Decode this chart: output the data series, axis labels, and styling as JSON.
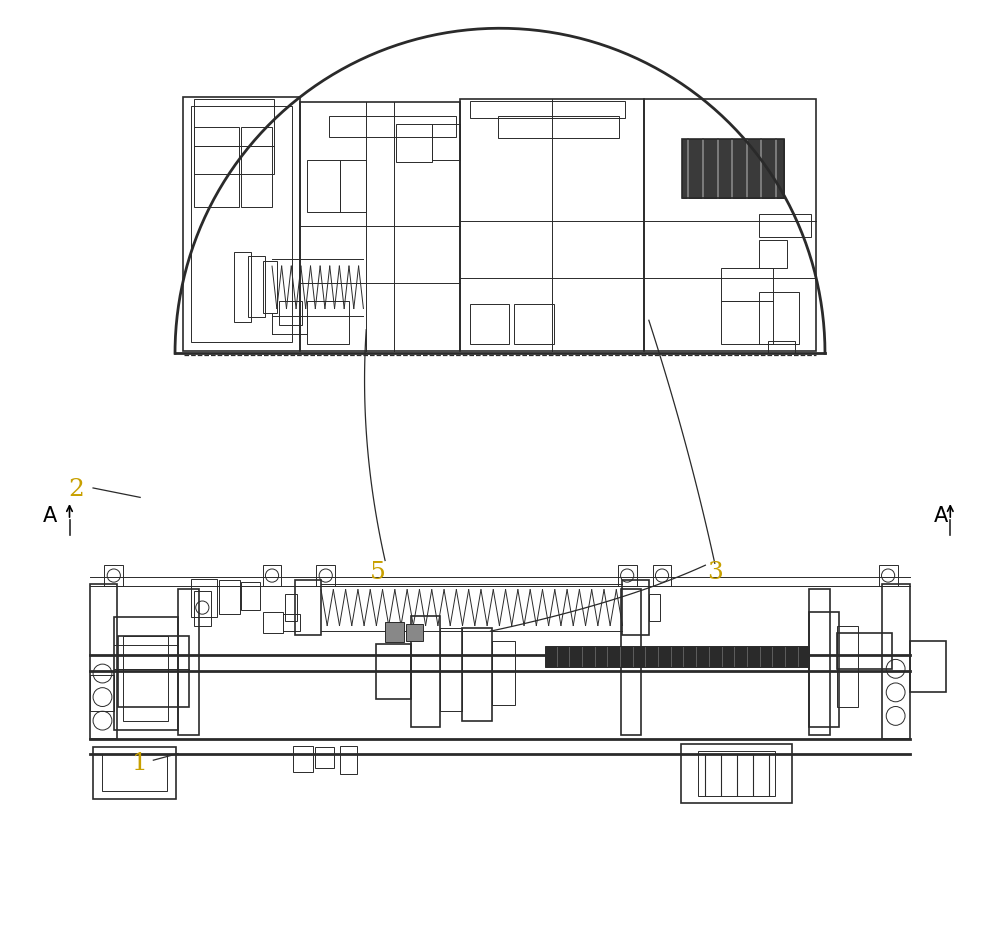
{
  "background_color": "#ffffff",
  "color_main": "#2a2a2a",
  "color_dark": "#000000",
  "color_black_fill": "#1a1a1a",
  "lw_main": 1.2,
  "lw_thick": 2.0,
  "lw_thin": 0.7,
  "label_color": "#c8a000",
  "label_fontsize": 18,
  "A_fontsize": 15
}
